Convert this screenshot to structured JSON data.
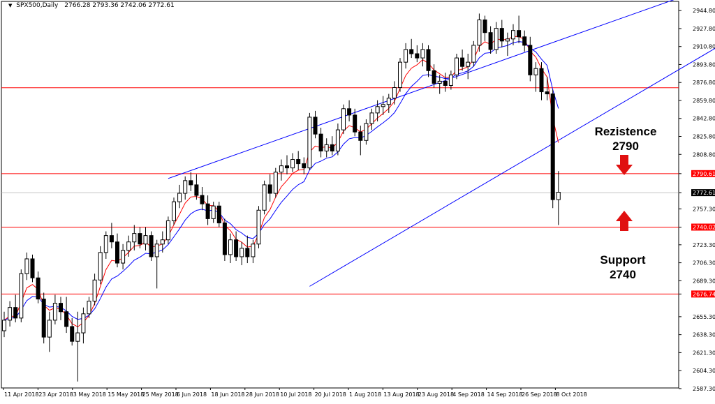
{
  "header": {
    "symbol": "SPX500,Daily",
    "ohlc": "2766.28 2793.36 2742.06 2772.61"
  },
  "annotations": {
    "resistance_title": "Rezistence",
    "resistance_value": "2790",
    "support_title": "Support",
    "support_value": "2740"
  },
  "colors": {
    "bull": "#ffffff",
    "bear": "#000000",
    "ema_fast": "#ff0000",
    "ema_slow": "#0000ff",
    "level_line": "#ff0000",
    "trend_line": "#0000ff",
    "grid_frame": "#000000",
    "arrow": "#e01010"
  },
  "chart_data": {
    "type": "candlestick",
    "title": "SPX500,Daily",
    "ylim": [
      2587.9,
      2953.5
    ],
    "y_ticks": [
      "2944.80",
      "2927.80",
      "2910.80",
      "2893.80",
      "2876.80",
      "2859.80",
      "2842.80",
      "2825.80",
      "2808.80",
      "2790.61",
      "2772.61",
      "2757.30",
      "2740.02",
      "2723.30",
      "2706.30",
      "2689.30",
      "2676.74",
      "2655.30",
      "2638.30",
      "2621.30",
      "2604.30",
      "2587.30"
    ],
    "x_tick_labels": [
      "11 Apr 2018",
      "23 Apr 2018",
      "3 May 2018",
      "15 May 2018",
      "25 May 2018",
      "6 Jun 2018",
      "18 Jun 2018",
      "28 Jun 2018",
      "10 Jul 2018",
      "20 Jul 2018",
      "1 Aug 2018",
      "13 Aug 2018",
      "23 Aug 2018",
      "4 Sep 2018",
      "14 Sep 2018",
      "26 Sep 2018",
      "8 Oct 2018"
    ],
    "horizontal_levels": [
      2871.8,
      2790.61,
      2740.02,
      2676.74
    ],
    "current_price": 2772.61,
    "trend_lines": [
      {
        "name": "upper channel",
        "from": [
          29,
          2786
        ],
        "to": [
          121,
          2960
        ]
      },
      {
        "name": "lower channel",
        "from": [
          54,
          2684
        ],
        "to": [
          133,
          2932
        ]
      }
    ],
    "candles": [
      {
        "o": 2642,
        "h": 2660,
        "l": 2636,
        "c": 2652
      },
      {
        "o": 2652,
        "h": 2670,
        "l": 2646,
        "c": 2664
      },
      {
        "o": 2664,
        "h": 2676,
        "l": 2650,
        "c": 2654
      },
      {
        "o": 2654,
        "h": 2700,
        "l": 2650,
        "c": 2696
      },
      {
        "o": 2696,
        "h": 2716,
        "l": 2690,
        "c": 2710
      },
      {
        "o": 2710,
        "h": 2714,
        "l": 2688,
        "c": 2692
      },
      {
        "o": 2692,
        "h": 2698,
        "l": 2668,
        "c": 2672
      },
      {
        "o": 2672,
        "h": 2678,
        "l": 2630,
        "c": 2636
      },
      {
        "o": 2636,
        "h": 2660,
        "l": 2622,
        "c": 2652
      },
      {
        "o": 2652,
        "h": 2676,
        "l": 2648,
        "c": 2668
      },
      {
        "o": 2668,
        "h": 2674,
        "l": 2652,
        "c": 2660
      },
      {
        "o": 2660,
        "h": 2674,
        "l": 2640,
        "c": 2646
      },
      {
        "o": 2646,
        "h": 2654,
        "l": 2628,
        "c": 2632
      },
      {
        "o": 2632,
        "h": 2660,
        "l": 2594,
        "c": 2640
      },
      {
        "o": 2640,
        "h": 2664,
        "l": 2630,
        "c": 2658
      },
      {
        "o": 2658,
        "h": 2674,
        "l": 2654,
        "c": 2670
      },
      {
        "o": 2670,
        "h": 2696,
        "l": 2666,
        "c": 2690
      },
      {
        "o": 2690,
        "h": 2722,
        "l": 2686,
        "c": 2716
      },
      {
        "o": 2716,
        "h": 2736,
        "l": 2710,
        "c": 2732
      },
      {
        "o": 2732,
        "h": 2744,
        "l": 2720,
        "c": 2726
      },
      {
        "o": 2726,
        "h": 2734,
        "l": 2702,
        "c": 2706
      },
      {
        "o": 2706,
        "h": 2724,
        "l": 2700,
        "c": 2718
      },
      {
        "o": 2718,
        "h": 2732,
        "l": 2712,
        "c": 2726
      },
      {
        "o": 2726,
        "h": 2742,
        "l": 2718,
        "c": 2734
      },
      {
        "o": 2734,
        "h": 2740,
        "l": 2720,
        "c": 2724
      },
      {
        "o": 2724,
        "h": 2740,
        "l": 2718,
        "c": 2732
      },
      {
        "o": 2732,
        "h": 2736,
        "l": 2708,
        "c": 2712
      },
      {
        "o": 2712,
        "h": 2728,
        "l": 2682,
        "c": 2724
      },
      {
        "o": 2724,
        "h": 2736,
        "l": 2716,
        "c": 2728
      },
      {
        "o": 2728,
        "h": 2750,
        "l": 2724,
        "c": 2746
      },
      {
        "o": 2746,
        "h": 2768,
        "l": 2742,
        "c": 2764
      },
      {
        "o": 2764,
        "h": 2780,
        "l": 2758,
        "c": 2772
      },
      {
        "o": 2772,
        "h": 2788,
        "l": 2766,
        "c": 2784
      },
      {
        "o": 2784,
        "h": 2792,
        "l": 2774,
        "c": 2780
      },
      {
        "o": 2780,
        "h": 2790,
        "l": 2766,
        "c": 2770
      },
      {
        "o": 2770,
        "h": 2778,
        "l": 2756,
        "c": 2762
      },
      {
        "o": 2762,
        "h": 2770,
        "l": 2742,
        "c": 2748
      },
      {
        "o": 2748,
        "h": 2764,
        "l": 2744,
        "c": 2760
      },
      {
        "o": 2760,
        "h": 2764,
        "l": 2740,
        "c": 2744
      },
      {
        "o": 2744,
        "h": 2748,
        "l": 2708,
        "c": 2714
      },
      {
        "o": 2714,
        "h": 2734,
        "l": 2706,
        "c": 2728
      },
      {
        "o": 2728,
        "h": 2736,
        "l": 2708,
        "c": 2712
      },
      {
        "o": 2712,
        "h": 2726,
        "l": 2704,
        "c": 2720
      },
      {
        "o": 2720,
        "h": 2732,
        "l": 2706,
        "c": 2712
      },
      {
        "o": 2712,
        "h": 2728,
        "l": 2706,
        "c": 2724
      },
      {
        "o": 2724,
        "h": 2760,
        "l": 2720,
        "c": 2756
      },
      {
        "o": 2756,
        "h": 2784,
        "l": 2752,
        "c": 2780
      },
      {
        "o": 2780,
        "h": 2790,
        "l": 2764,
        "c": 2772
      },
      {
        "o": 2772,
        "h": 2796,
        "l": 2768,
        "c": 2792
      },
      {
        "o": 2792,
        "h": 2804,
        "l": 2784,
        "c": 2798
      },
      {
        "o": 2798,
        "h": 2808,
        "l": 2790,
        "c": 2796
      },
      {
        "o": 2796,
        "h": 2810,
        "l": 2792,
        "c": 2804
      },
      {
        "o": 2804,
        "h": 2812,
        "l": 2794,
        "c": 2800
      },
      {
        "o": 2800,
        "h": 2806,
        "l": 2790,
        "c": 2796
      },
      {
        "o": 2796,
        "h": 2848,
        "l": 2794,
        "c": 2844
      },
      {
        "o": 2844,
        "h": 2850,
        "l": 2824,
        "c": 2828
      },
      {
        "o": 2828,
        "h": 2834,
        "l": 2806,
        "c": 2812
      },
      {
        "o": 2812,
        "h": 2824,
        "l": 2806,
        "c": 2818
      },
      {
        "o": 2818,
        "h": 2826,
        "l": 2808,
        "c": 2812
      },
      {
        "o": 2812,
        "h": 2838,
        "l": 2808,
        "c": 2832
      },
      {
        "o": 2832,
        "h": 2856,
        "l": 2828,
        "c": 2852
      },
      {
        "o": 2852,
        "h": 2860,
        "l": 2840,
        "c": 2846
      },
      {
        "o": 2846,
        "h": 2852,
        "l": 2826,
        "c": 2830
      },
      {
        "o": 2830,
        "h": 2836,
        "l": 2808,
        "c": 2822
      },
      {
        "o": 2822,
        "h": 2842,
        "l": 2818,
        "c": 2838
      },
      {
        "o": 2838,
        "h": 2852,
        "l": 2832,
        "c": 2848
      },
      {
        "o": 2848,
        "h": 2860,
        "l": 2840,
        "c": 2854
      },
      {
        "o": 2854,
        "h": 2864,
        "l": 2846,
        "c": 2856
      },
      {
        "o": 2856,
        "h": 2866,
        "l": 2848,
        "c": 2862
      },
      {
        "o": 2862,
        "h": 2878,
        "l": 2856,
        "c": 2872
      },
      {
        "o": 2872,
        "h": 2900,
        "l": 2868,
        "c": 2896
      },
      {
        "o": 2896,
        "h": 2914,
        "l": 2890,
        "c": 2908
      },
      {
        "o": 2908,
        "h": 2918,
        "l": 2900,
        "c": 2904
      },
      {
        "o": 2904,
        "h": 2912,
        "l": 2896,
        "c": 2900
      },
      {
        "o": 2900,
        "h": 2914,
        "l": 2892,
        "c": 2908
      },
      {
        "o": 2908,
        "h": 2912,
        "l": 2882,
        "c": 2888
      },
      {
        "o": 2888,
        "h": 2894,
        "l": 2872,
        "c": 2876
      },
      {
        "o": 2876,
        "h": 2884,
        "l": 2866,
        "c": 2878
      },
      {
        "o": 2878,
        "h": 2886,
        "l": 2868,
        "c": 2874
      },
      {
        "o": 2874,
        "h": 2888,
        "l": 2870,
        "c": 2884
      },
      {
        "o": 2884,
        "h": 2904,
        "l": 2880,
        "c": 2900
      },
      {
        "o": 2900,
        "h": 2908,
        "l": 2888,
        "c": 2892
      },
      {
        "o": 2892,
        "h": 2904,
        "l": 2880,
        "c": 2896
      },
      {
        "o": 2896,
        "h": 2916,
        "l": 2892,
        "c": 2912
      },
      {
        "o": 2912,
        "h": 2942,
        "l": 2906,
        "c": 2936
      },
      {
        "o": 2936,
        "h": 2940,
        "l": 2916,
        "c": 2924
      },
      {
        "o": 2924,
        "h": 2930,
        "l": 2904,
        "c": 2908
      },
      {
        "o": 2908,
        "h": 2934,
        "l": 2904,
        "c": 2928
      },
      {
        "o": 2928,
        "h": 2936,
        "l": 2910,
        "c": 2916
      },
      {
        "o": 2916,
        "h": 2924,
        "l": 2902,
        "c": 2918
      },
      {
        "o": 2918,
        "h": 2932,
        "l": 2912,
        "c": 2926
      },
      {
        "o": 2926,
        "h": 2940,
        "l": 2914,
        "c": 2920
      },
      {
        "o": 2920,
        "h": 2926,
        "l": 2906,
        "c": 2912
      },
      {
        "o": 2912,
        "h": 2920,
        "l": 2878,
        "c": 2884
      },
      {
        "o": 2884,
        "h": 2896,
        "l": 2868,
        "c": 2890
      },
      {
        "o": 2890,
        "h": 2896,
        "l": 2860,
        "c": 2868
      },
      {
        "o": 2868,
        "h": 2882,
        "l": 2860,
        "c": 2866
      },
      {
        "o": 2866,
        "h": 2870,
        "l": 2758,
        "c": 2766
      },
      {
        "o": 2766,
        "h": 2793,
        "l": 2742,
        "c": 2773
      }
    ],
    "series": [
      {
        "name": "EMA fast",
        "color": "#ff0000"
      },
      {
        "name": "EMA slow",
        "color": "#0000ff"
      }
    ]
  }
}
